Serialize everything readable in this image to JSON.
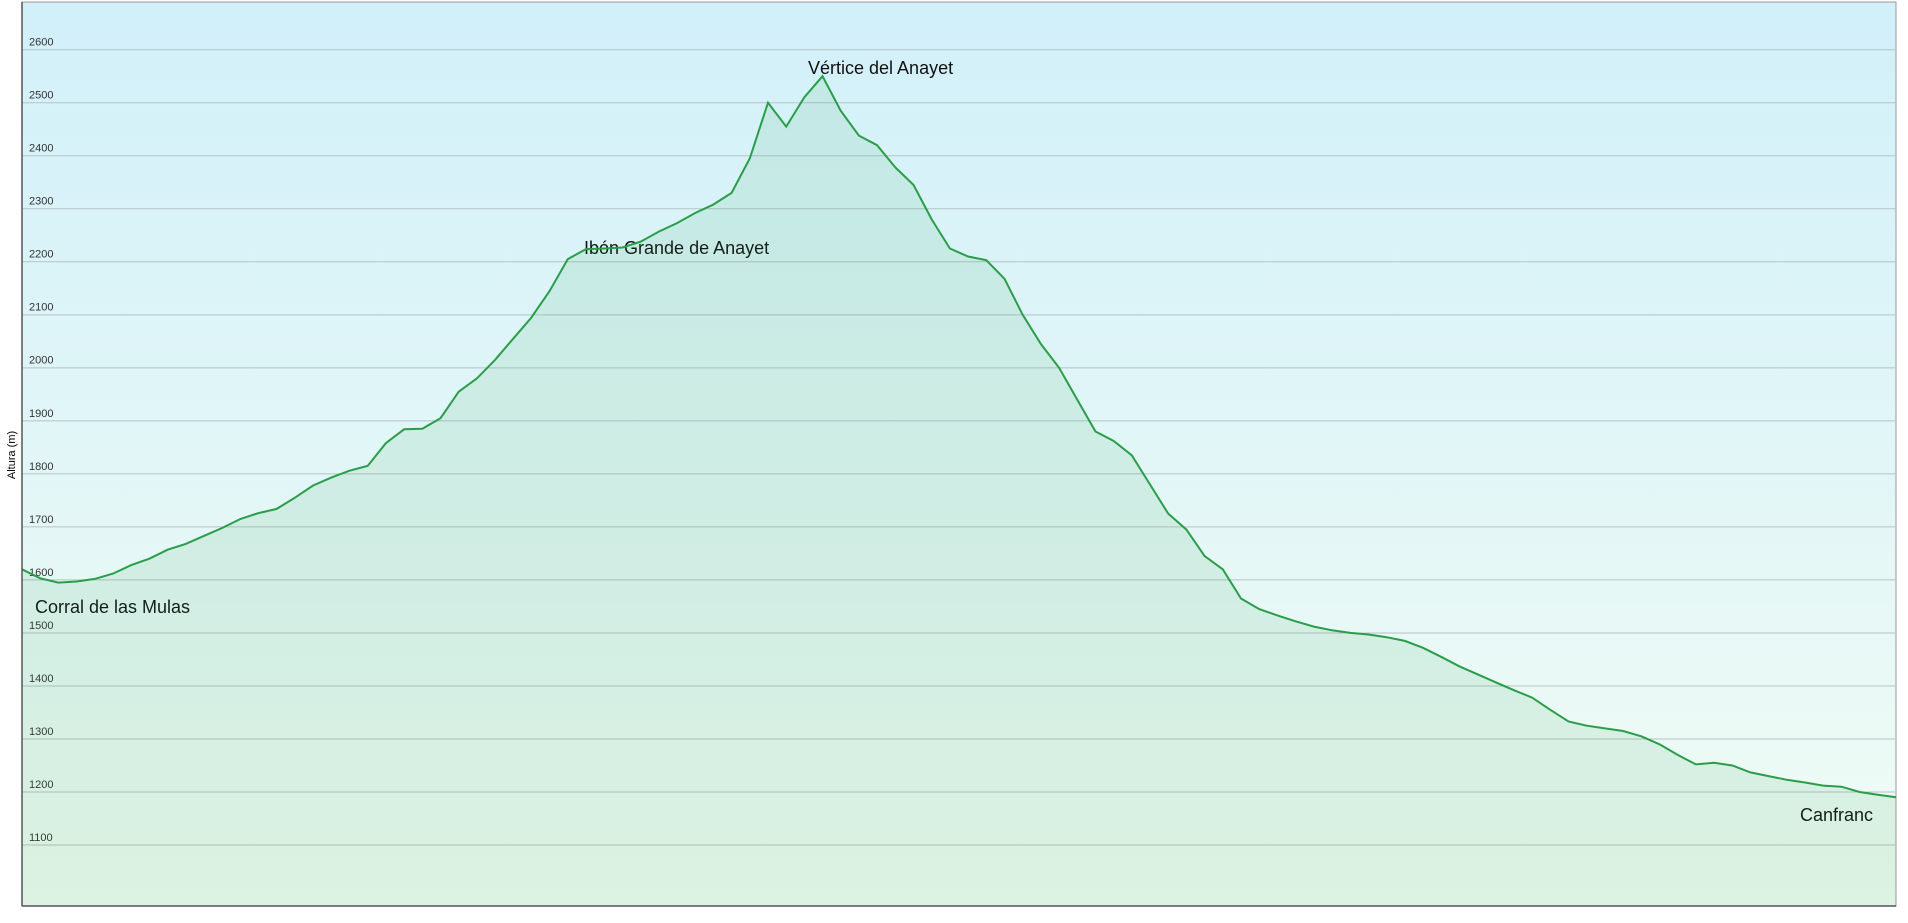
{
  "chart_data": {
    "type": "area",
    "y_label": "Altura (m)",
    "annotations": [
      "Corral de las Mulas",
      "Ibón Grande de Anayet",
      "Vértice del Anayet",
      "Canfranc"
    ],
    "color": "#2a9d48",
    "grid": true,
    "ylim": [
      985,
      2690
    ],
    "yticks": [
      1100,
      1200,
      1300,
      1400,
      1500,
      1600,
      1700,
      1800,
      1900,
      2000,
      2100,
      2200,
      2300,
      2400,
      2500,
      2600
    ],
    "values": [
      1620,
      1603,
      1595,
      1597,
      1602,
      1612,
      1628,
      1640,
      1657,
      1668,
      1683,
      1698,
      1715,
      1726,
      1734,
      1755,
      1778,
      1793,
      1806,
      1815,
      1858,
      1884,
      1885,
      1905,
      1955,
      1980,
      2015,
      2055,
      2095,
      2145,
      2205,
      2224,
      2225,
      2227,
      2238,
      2257,
      2273,
      2292,
      2308,
      2330,
      2395,
      2500,
      2455,
      2510,
      2550,
      2485,
      2438,
      2420,
      2378,
      2345,
      2280,
      2225,
      2210,
      2203,
      2168,
      2100,
      2045,
      2000,
      1940,
      1880,
      1862,
      1835,
      1780,
      1725,
      1695,
      1645,
      1620,
      1565,
      1545,
      1533,
      1522,
      1512,
      1505,
      1500,
      1497,
      1492,
      1485,
      1472,
      1455,
      1437,
      1422,
      1407,
      1392,
      1378,
      1355,
      1333,
      1325,
      1320,
      1315,
      1305,
      1290,
      1270,
      1252,
      1255,
      1250,
      1237,
      1230,
      1223,
      1218,
      1212,
      1210,
      1200,
      1195,
      1190
    ]
  }
}
